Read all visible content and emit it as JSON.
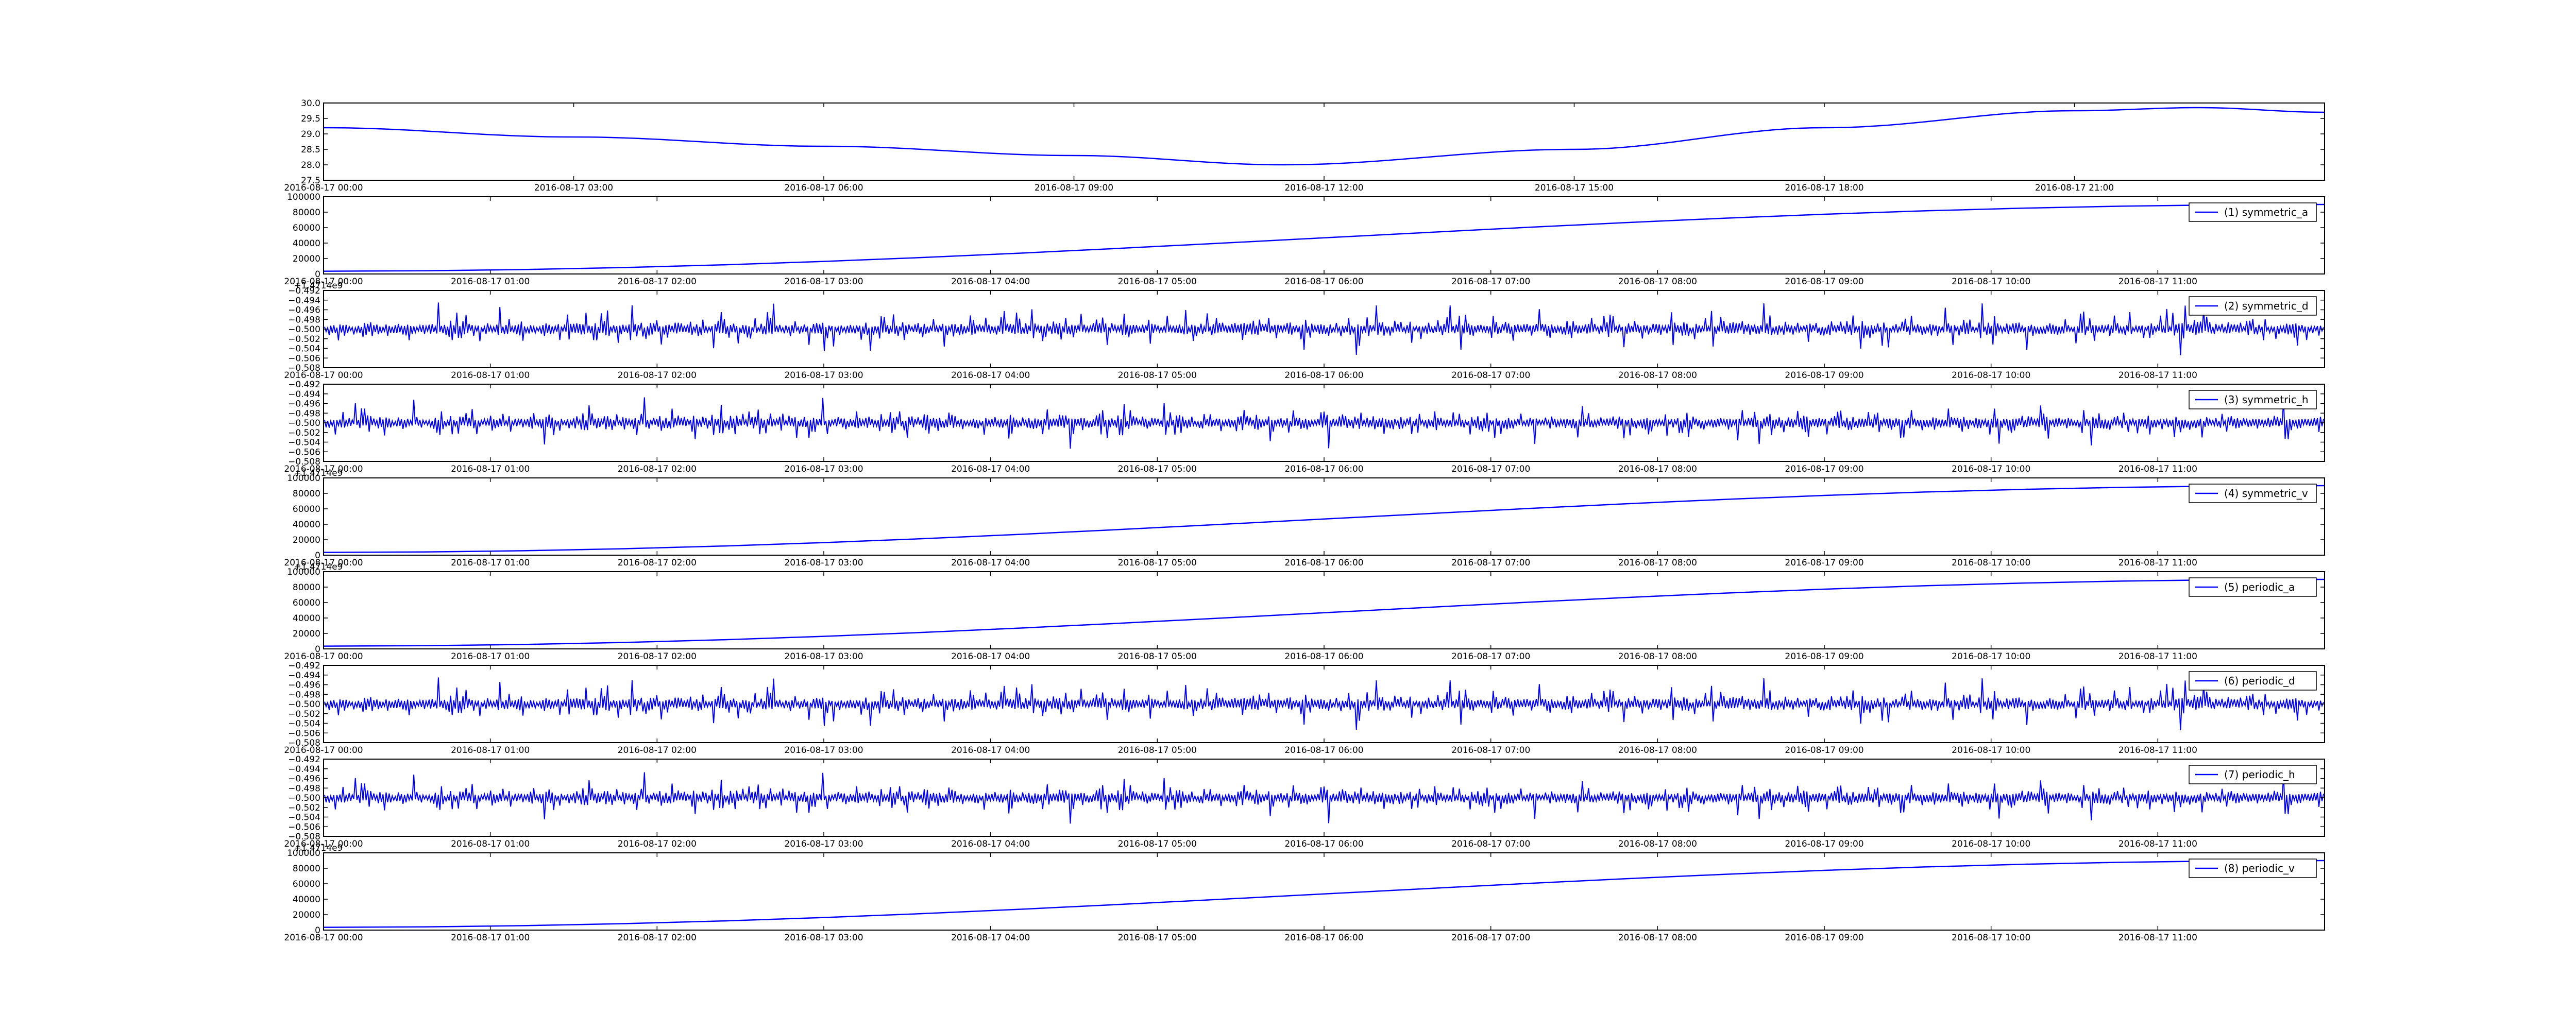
{
  "figure": {
    "background": "#ffffff",
    "line_color": "#0000ff",
    "axis_color": "#000000"
  },
  "chart_data": [
    {
      "type": "line",
      "x_start": "2016-08-17 00:00",
      "x_end": "2016-08-18 00:00",
      "xticks": [
        "2016-08-17 00:00",
        "2016-08-17 03:00",
        "2016-08-17 06:00",
        "2016-08-17 09:00",
        "2016-08-17 12:00",
        "2016-08-17 15:00",
        "2016-08-17 18:00",
        "2016-08-17 21:00"
      ],
      "ylim": [
        27.5,
        30.0
      ],
      "yticks": [
        "27.5",
        "28.0",
        "28.5",
        "29.0",
        "29.5",
        "30.0"
      ],
      "offset_text": "",
      "series": [
        {
          "x": [
            "2016-08-17 00:00",
            "2016-08-17 03:00",
            "2016-08-17 06:00",
            "2016-08-17 09:00",
            "2016-08-17 11:30",
            "2016-08-17 15:00",
            "2016-08-17 18:00",
            "2016-08-17 21:00",
            "2016-08-17 22:30",
            "2016-08-18 00:00"
          ],
          "y": [
            29.2,
            28.9,
            28.6,
            28.3,
            28.0,
            28.5,
            29.2,
            29.75,
            29.85,
            29.7
          ]
        }
      ]
    },
    {
      "type": "line",
      "x_start": "2016-08-17 00:00",
      "x_end": "2016-08-17 12:00",
      "xticks": [
        "2016-08-17 00:00",
        "2016-08-17 01:00",
        "2016-08-17 02:00",
        "2016-08-17 03:00",
        "2016-08-17 04:00",
        "2016-08-17 05:00",
        "2016-08-17 06:00",
        "2016-08-17 07:00",
        "2016-08-17 08:00",
        "2016-08-17 09:00",
        "2016-08-17 10:00",
        "2016-08-17 11:00"
      ],
      "ylim": [
        0,
        100000
      ],
      "yticks": [
        "0",
        "20000",
        "40000",
        "60000",
        "80000",
        "100000"
      ],
      "offset_text": "+1.4714e9",
      "legend": "(1) symmetric_a",
      "series": [
        {
          "name": "(1) symmetric_a",
          "x": [
            "2016-08-17 00:00",
            "2016-08-17 12:00"
          ],
          "y": [
            3600,
            90000
          ]
        }
      ]
    },
    {
      "type": "line",
      "x_start": "2016-08-17 00:00",
      "x_end": "2016-08-17 12:00",
      "xticks": [
        "2016-08-17 00:00",
        "2016-08-17 01:00",
        "2016-08-17 02:00",
        "2016-08-17 03:00",
        "2016-08-17 04:00",
        "2016-08-17 05:00",
        "2016-08-17 06:00",
        "2016-08-17 07:00",
        "2016-08-17 08:00",
        "2016-08-17 09:00",
        "2016-08-17 10:00",
        "2016-08-17 11:00"
      ],
      "ylim": [
        -0.508,
        -0.492
      ],
      "yticks": [
        "−0.508",
        "−0.506",
        "−0.504",
        "−0.502",
        "−0.500",
        "−0.498",
        "−0.496",
        "−0.494",
        "−0.492"
      ],
      "offset_text": "",
      "legend": "(2) symmetric_d",
      "noise": {
        "center": -0.5,
        "seed": 11
      },
      "series": [
        {
          "name": "(2) symmetric_d",
          "y_center": -0.5
        }
      ]
    },
    {
      "type": "line",
      "x_start": "2016-08-17 00:00",
      "x_end": "2016-08-17 12:00",
      "xticks": [
        "2016-08-17 00:00",
        "2016-08-17 01:00",
        "2016-08-17 02:00",
        "2016-08-17 03:00",
        "2016-08-17 04:00",
        "2016-08-17 05:00",
        "2016-08-17 06:00",
        "2016-08-17 07:00",
        "2016-08-17 08:00",
        "2016-08-17 09:00",
        "2016-08-17 10:00",
        "2016-08-17 11:00"
      ],
      "ylim": [
        -0.508,
        -0.492
      ],
      "yticks": [
        "−0.508",
        "−0.506",
        "−0.504",
        "−0.502",
        "−0.500",
        "−0.498",
        "−0.496",
        "−0.494",
        "−0.492"
      ],
      "offset_text": "+1.4714e9",
      "legend": "(3) symmetric_h",
      "noise": {
        "center": -0.5,
        "seed": 23
      },
      "series": [
        {
          "name": "(3) symmetric_h",
          "y_center": -0.5
        }
      ]
    },
    {
      "type": "line",
      "x_start": "2016-08-17 00:00",
      "x_end": "2016-08-17 12:00",
      "xticks": [
        "2016-08-17 00:00",
        "2016-08-17 01:00",
        "2016-08-17 02:00",
        "2016-08-17 03:00",
        "2016-08-17 04:00",
        "2016-08-17 05:00",
        "2016-08-17 06:00",
        "2016-08-17 07:00",
        "2016-08-17 08:00",
        "2016-08-17 09:00",
        "2016-08-17 10:00",
        "2016-08-17 11:00"
      ],
      "ylim": [
        0,
        100000
      ],
      "yticks": [
        "0",
        "20000",
        "40000",
        "60000",
        "80000",
        "100000"
      ],
      "offset_text": "+1.4714e9",
      "legend": "(4) symmetric_v",
      "series": [
        {
          "name": "(4) symmetric_v",
          "x": [
            "2016-08-17 00:00",
            "2016-08-17 12:00"
          ],
          "y": [
            3600,
            90000
          ]
        }
      ]
    },
    {
      "type": "line",
      "x_start": "2016-08-17 00:00",
      "x_end": "2016-08-17 12:00",
      "xticks": [
        "2016-08-17 00:00",
        "2016-08-17 01:00",
        "2016-08-17 02:00",
        "2016-08-17 03:00",
        "2016-08-17 04:00",
        "2016-08-17 05:00",
        "2016-08-17 06:00",
        "2016-08-17 07:00",
        "2016-08-17 08:00",
        "2016-08-17 09:00",
        "2016-08-17 10:00",
        "2016-08-17 11:00"
      ],
      "ylim": [
        0,
        100000
      ],
      "yticks": [
        "0",
        "20000",
        "40000",
        "60000",
        "80000",
        "100000"
      ],
      "offset_text": "",
      "legend": "(5) periodic_a",
      "series": [
        {
          "name": "(5) periodic_a",
          "x": [
            "2016-08-17 00:00",
            "2016-08-17 12:00"
          ],
          "y": [
            3600,
            90000
          ]
        }
      ]
    },
    {
      "type": "line",
      "x_start": "2016-08-17 00:00",
      "x_end": "2016-08-17 12:00",
      "xticks": [
        "2016-08-17 00:00",
        "2016-08-17 01:00",
        "2016-08-17 02:00",
        "2016-08-17 03:00",
        "2016-08-17 04:00",
        "2016-08-17 05:00",
        "2016-08-17 06:00",
        "2016-08-17 07:00",
        "2016-08-17 08:00",
        "2016-08-17 09:00",
        "2016-08-17 10:00",
        "2016-08-17 11:00"
      ],
      "ylim": [
        -0.508,
        -0.492
      ],
      "yticks": [
        "−0.508",
        "−0.506",
        "−0.504",
        "−0.502",
        "−0.500",
        "−0.498",
        "−0.496",
        "−0.494",
        "−0.492"
      ],
      "offset_text": "",
      "legend": "(6) periodic_d",
      "noise": {
        "center": -0.5,
        "seed": 11
      },
      "series": [
        {
          "name": "(6) periodic_d",
          "y_center": -0.5
        }
      ]
    },
    {
      "type": "line",
      "x_start": "2016-08-17 00:00",
      "x_end": "2016-08-17 12:00",
      "xticks": [
        "2016-08-17 00:00",
        "2016-08-17 01:00",
        "2016-08-17 02:00",
        "2016-08-17 03:00",
        "2016-08-17 04:00",
        "2016-08-17 05:00",
        "2016-08-17 06:00",
        "2016-08-17 07:00",
        "2016-08-17 08:00",
        "2016-08-17 09:00",
        "2016-08-17 10:00",
        "2016-08-17 11:00"
      ],
      "ylim": [
        -0.508,
        -0.492
      ],
      "yticks": [
        "−0.508",
        "−0.506",
        "−0.504",
        "−0.502",
        "−0.500",
        "−0.498",
        "−0.496",
        "−0.494",
        "−0.492"
      ],
      "offset_text": "+1.4714e9",
      "legend": "(7) periodic_h",
      "noise": {
        "center": -0.5,
        "seed": 23
      },
      "series": [
        {
          "name": "(7) periodic_h",
          "y_center": -0.5
        }
      ]
    },
    {
      "type": "line",
      "x_start": "2016-08-17 00:00",
      "x_end": "2016-08-17 12:00",
      "xticks": [
        "2016-08-17 00:00",
        "2016-08-17 01:00",
        "2016-08-17 02:00",
        "2016-08-17 03:00",
        "2016-08-17 04:00",
        "2016-08-17 05:00",
        "2016-08-17 06:00",
        "2016-08-17 07:00",
        "2016-08-17 08:00",
        "2016-08-17 09:00",
        "2016-08-17 10:00",
        "2016-08-17 11:00"
      ],
      "ylim": [
        0,
        100000
      ],
      "yticks": [
        "0",
        "20000",
        "40000",
        "60000",
        "80000",
        "100000"
      ],
      "offset_text": "",
      "legend": "(8) periodic_v",
      "series": [
        {
          "name": "(8) periodic_v",
          "x": [
            "2016-08-17 00:00",
            "2016-08-17 12:00"
          ],
          "y": [
            3600,
            90000
          ]
        }
      ]
    }
  ]
}
